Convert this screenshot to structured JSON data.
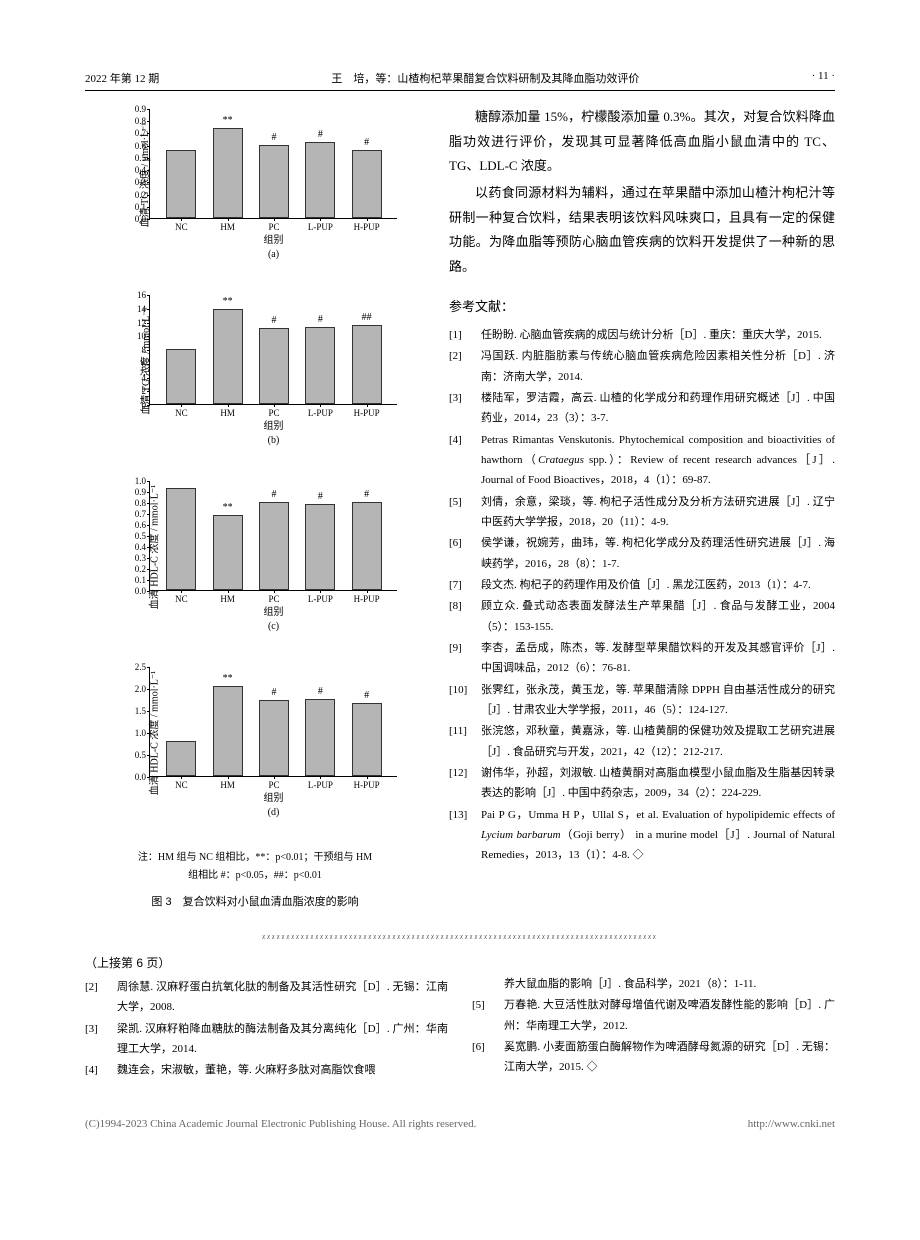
{
  "header": {
    "left": "2022 年第 12 期",
    "center": "王　培，等：山楂枸杞苹果醋复合饮料研制及其降血脂功效评价",
    "right": "· 11 ·"
  },
  "charts": {
    "xcats": [
      "NC",
      "HM",
      "PC",
      "L-PUP",
      "H-PUP"
    ],
    "group_label": "组别",
    "bar_color": "#b5b5b5",
    "series": [
      {
        "id": "a",
        "ylabel": "血清 TG 浓度 / μmol·L⁻¹",
        "ymax": 0.9,
        "ystep": 0.1,
        "vals": [
          0.56,
          0.74,
          0.6,
          0.62,
          0.56
        ],
        "sigs": [
          "",
          "**",
          "#",
          "#",
          "#"
        ]
      },
      {
        "id": "b",
        "ylabel": "血清 TG 浓度 / mmol·L⁻¹",
        "ymax": 16,
        "ystep": 2,
        "vals": [
          8.0,
          13.8,
          11.0,
          11.2,
          11.5
        ],
        "sigs": [
          "",
          "**",
          "#",
          "#",
          "##"
        ]
      },
      {
        "id": "c",
        "ylabel": "血清 HDL-C 浓度 / mmol·L⁻¹",
        "ymax": 1.0,
        "ystep": 0.1,
        "vals": [
          0.93,
          0.68,
          0.8,
          0.78,
          0.8
        ],
        "sigs": [
          "",
          "**",
          "#",
          "#",
          "#"
        ]
      },
      {
        "id": "d",
        "ylabel": "血清 HDL-C 浓度 / mmol·L⁻¹",
        "ymax": 2.5,
        "ystep": 0.5,
        "vals": [
          0.8,
          2.05,
          1.72,
          1.75,
          1.65
        ],
        "sigs": [
          "",
          "**",
          "#",
          "#",
          "#"
        ]
      }
    ]
  },
  "notes_l1": "注：HM 组与 NC 组相比，**：p<0.01；干预组与 HM",
  "notes_l2": "组相比 #：p<0.05，##：p<0.01",
  "fig_title": "图 3　复合饮料对小鼠血清血脂浓度的影响",
  "para1": "糖醇添加量 15%，柠檬酸添加量 0.3%。其次，对复合饮料降血脂功效进行评价，发现其可显著降低高血脂小鼠血清中的 TC、TG、LDL-C 浓度。",
  "para2": "以药食同源材料为辅料，通过在苹果醋中添加山楂汁枸杞汁等研制一种复合饮料，结果表明该饮料风味爽口，且具有一定的保健功能。为降血脂等预防心脑血管疾病的饮料开发提供了一种新的思路。",
  "refs_title": "参考文献：",
  "refs": [
    {
      "n": "[1]",
      "t": "任盼盼. 心脑血管疾病的成因与统计分析［D］. 重庆：重庆大学，2015."
    },
    {
      "n": "[2]",
      "t": "冯国跃. 内脏脂肪素与传统心脑血管疾病危险因素相关性分析［D］. 济南：济南大学，2014."
    },
    {
      "n": "[3]",
      "t": "楼陆军，罗洁霞，高云. 山楂的化学成分和药理作用研究概述［J］. 中国药业，2014，23（3）：3-7."
    },
    {
      "n": "[4]",
      "t": "Petras Rimantas Venskutonis. Phytochemical composition and bioactivities of hawthorn（<span class=\"italic\">Crataegus</span> spp.）：Review of recent research advances［J］. Journal of Food Bioactives，2018，4（1）：69-87."
    },
    {
      "n": "[5]",
      "t": "刘倩，余意，梁琰，等. 枸杞子活性成分及分析方法研究进展［J］. 辽宁中医药大学学报，2018，20（11）：4-9."
    },
    {
      "n": "[6]",
      "t": "侯学谦，祝婉芳，曲玮，等. 枸杞化学成分及药理活性研究进展［J］. 海峡药学，2016，28（8）：1-7."
    },
    {
      "n": "[7]",
      "t": "段文杰. 枸杞子的药理作用及价值［J］. 黑龙江医药，2013（1）：4-7."
    },
    {
      "n": "[8]",
      "t": "顾立众. 叠式动态表面发酵法生产苹果醋［J］. 食品与发酵工业，2004（5）：153-155."
    },
    {
      "n": "[9]",
      "t": "李杏，孟岳成，陈杰，等. 发酵型苹果醋饮料的开发及其感官评价［J］. 中国调味品，2012（6）：76-81."
    },
    {
      "n": "[10]",
      "t": "张霁红，张永茂，黄玉龙，等. 苹果醋清除 DPPH 自由基活性成分的研究［J］. 甘肃农业大学学报，2011，46（5）：124-127."
    },
    {
      "n": "[11]",
      "t": "张浣悠，邓秋童，黄嘉泳，等. 山楂黄酮的保健功效及提取工艺研究进展［J］. 食品研究与开发，2021，42（12）：212-217."
    },
    {
      "n": "[12]",
      "t": "谢伟华，孙超，刘淑敏. 山楂黄酮对高脂血模型小鼠血脂及生脂基因转录表达的影响［J］. 中国中药杂志，2009，34（2）：224-229."
    },
    {
      "n": "[13]",
      "t": "Pai P G，Umma H P，Ullal S，et al. Evaluation of hypolipidemic effects of <span class=\"italic\">Lycium barbarum</span>（Goji berry） in a murine model［J］. Journal of Natural Remedies，2013，13（1）：4-8. ◇"
    }
  ],
  "cont_title": "（上接第 6 页）",
  "bottom_left": [
    {
      "n": "[2]",
      "t": "周徐慧. 汉麻籽蛋白抗氧化肽的制备及其活性研究［D］. 无锡：江南大学，2008."
    },
    {
      "n": "[3]",
      "t": "梁凯. 汉麻籽粕降血糖肽的酶法制备及其分离纯化［D］. 广州：华南理工大学，2014."
    },
    {
      "n": "[4]",
      "t": "魏连会，宋淑敏，董艳，等. 火麻籽多肽对高脂饮食喂"
    }
  ],
  "bottom_right": [
    {
      "n": "",
      "t": "养大鼠血脂的影响［J］. 食品科学，2021（8）：1-11."
    },
    {
      "n": "[5]",
      "t": "万春艳. 大豆活性肽对酵母增值代谢及啤酒发酵性能的影响［D］. 广州：华南理工大学，2012."
    },
    {
      "n": "[6]",
      "t": "奚宽鹏. 小麦面筋蛋白酶解物作为啤酒酵母氮源的研究［D］. 无锡：江南大学，2015. ◇"
    }
  ],
  "footer": {
    "left": "(C)1994-2023 China Academic Journal Electronic Publishing House. All rights reserved.",
    "right": "http://www.cnki.net"
  }
}
